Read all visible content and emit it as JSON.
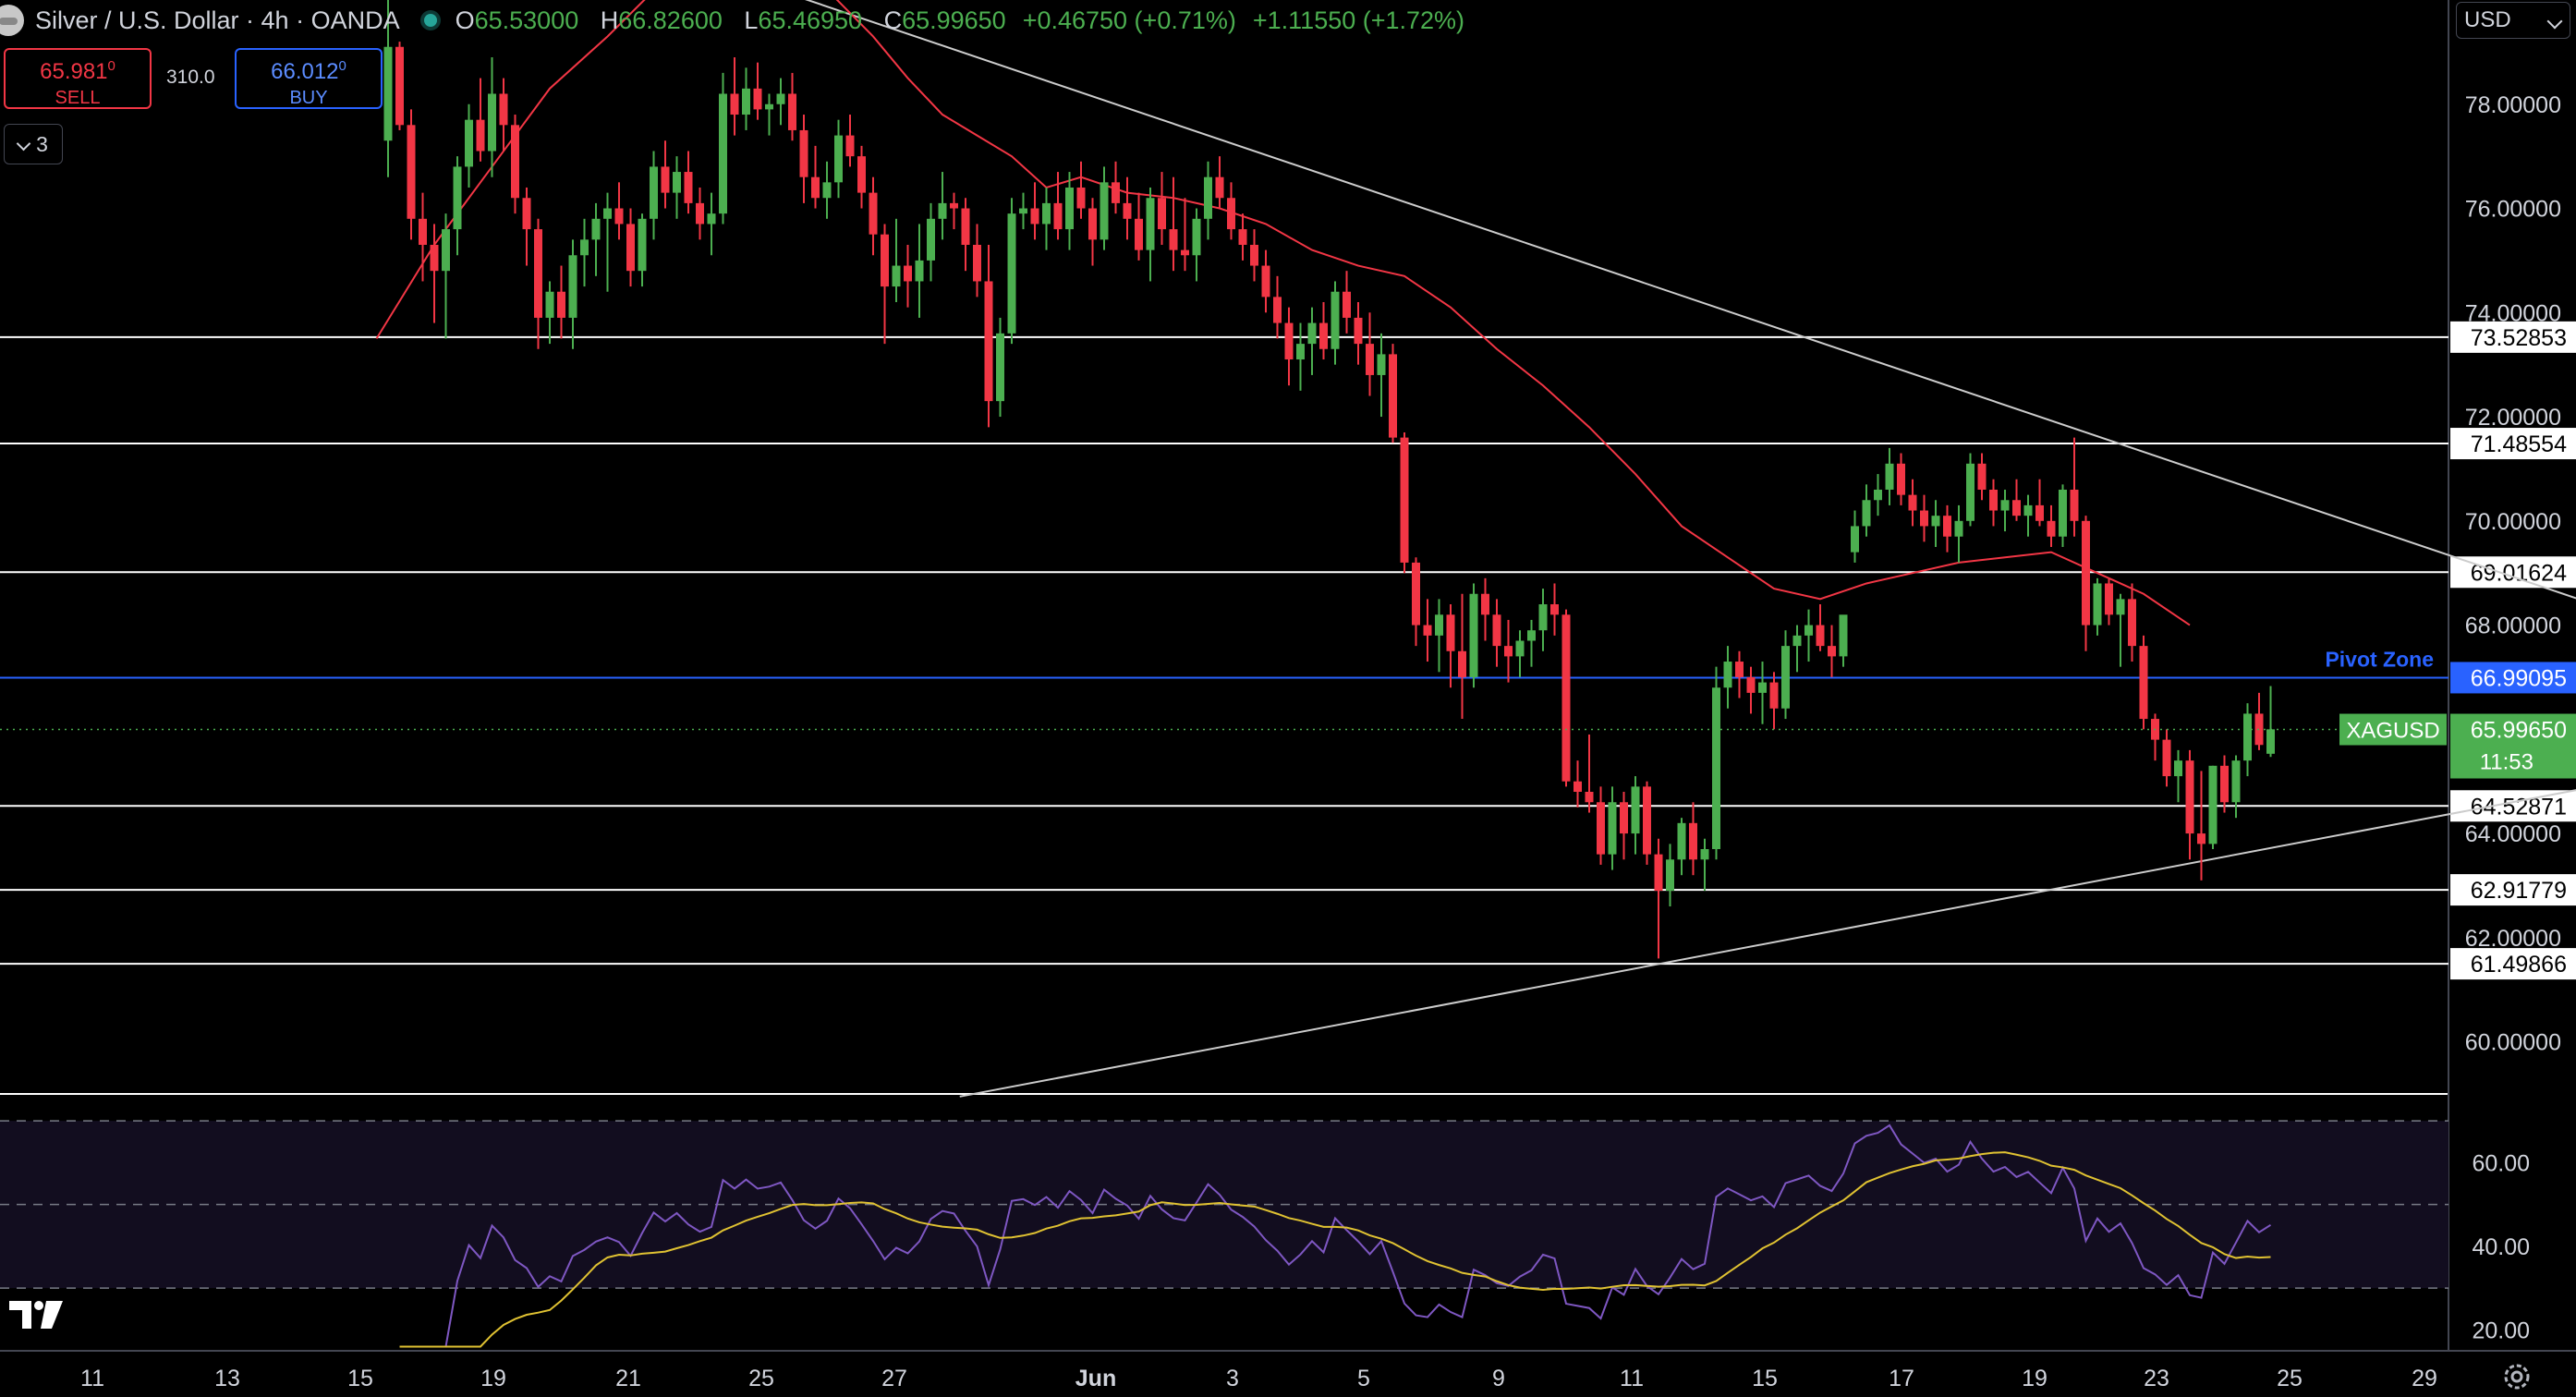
{
  "header": {
    "symbol_title": "Silver / U.S. Dollar · 4h · OANDA",
    "ohlc": [
      {
        "key": "O",
        "value": "65.53000"
      },
      {
        "key": "H",
        "value": "66.82600"
      },
      {
        "key": "L",
        "value": "65.46950"
      },
      {
        "key": "C",
        "value": "65.99650"
      }
    ],
    "change": "+0.46750 (+0.71%)",
    "change2": "+1.11550 (+1.72%)"
  },
  "trade": {
    "sell_price": "65.981",
    "sell_sup": "0",
    "sell_label": "SELL",
    "spread": "310.0",
    "buy_price": "66.012",
    "buy_sup": "0",
    "buy_label": "BUY"
  },
  "indicator_toggle": "3",
  "currency": "USD",
  "chart_data": {
    "type": "candlestick",
    "symbol": "XAGUSD",
    "interval": "4h",
    "y_range": [
      59.0,
      80.0
    ],
    "y_ticks": [
      "78.00000",
      "76.00000",
      "74.00000",
      "72.00000",
      "70.00000",
      "68.00000",
      "64.00000",
      "62.00000",
      "60.00000"
    ],
    "x_ticks": [
      "11",
      "13",
      "15",
      "19",
      "21",
      "25",
      "27",
      "Jun",
      "3",
      "5",
      "9",
      "11",
      "15",
      "17",
      "19",
      "23",
      "25",
      "29"
    ],
    "last_price": {
      "label": "XAGUSD",
      "value": "65.99650",
      "countdown": "11:53",
      "color": "#4caf50"
    },
    "levels": [
      {
        "value": 73.52853,
        "label": "73.52853",
        "color": "#ffffff"
      },
      {
        "value": 71.48554,
        "label": "71.48554",
        "color": "#ffffff"
      },
      {
        "value": 69.01624,
        "label": "69.01624",
        "color": "#ffffff"
      },
      {
        "value": 66.99095,
        "label": "66.99095",
        "color": "#2962ff",
        "name": "Pivot Zone"
      },
      {
        "value": 64.52871,
        "label": "64.52871",
        "color": "#ffffff"
      },
      {
        "value": 62.91779,
        "label": "62.91779",
        "color": "#ffffff"
      },
      {
        "value": 61.49866,
        "label": "61.49866",
        "color": "#ffffff"
      }
    ],
    "trendlines": [
      {
        "from": [
          -1,
          82.8
        ],
        "to": [
          197,
          67.95
        ],
        "color": "#cccccc"
      },
      {
        "from": [
          49.5,
          58.95
        ],
        "to": [
          197,
          65.15
        ],
        "color": "#cccccc"
      }
    ],
    "ma_color": "#f23645",
    "ma": [
      [
        -1,
        73.5
      ],
      [
        4,
        75.3
      ],
      [
        9,
        76.8
      ],
      [
        14,
        78.3
      ],
      [
        19,
        79.3
      ],
      [
        24,
        80.4
      ],
      [
        29,
        81.0
      ],
      [
        34,
        80.9
      ],
      [
        38,
        80.2
      ],
      [
        42,
        79.3
      ],
      [
        45,
        78.5
      ],
      [
        48,
        77.8
      ],
      [
        51,
        77.4
      ],
      [
        54,
        77.0
      ],
      [
        57,
        76.4
      ],
      [
        60,
        76.6
      ],
      [
        64,
        76.3
      ],
      [
        68,
        76.2
      ],
      [
        72,
        76.0
      ],
      [
        76,
        75.7
      ],
      [
        80,
        75.2
      ],
      [
        84,
        74.9
      ],
      [
        88,
        74.7
      ],
      [
        92,
        74.1
      ],
      [
        96,
        73.3
      ],
      [
        100,
        72.6
      ],
      [
        104,
        71.8
      ],
      [
        108,
        70.9
      ],
      [
        112,
        69.9
      ],
      [
        116,
        69.3
      ],
      [
        120,
        68.7
      ],
      [
        124,
        68.5
      ],
      [
        128,
        68.8
      ],
      [
        132,
        69.0
      ],
      [
        136,
        69.2
      ],
      [
        140,
        69.3
      ],
      [
        144,
        69.4
      ],
      [
        148,
        69.0
      ],
      [
        152,
        68.6
      ],
      [
        156,
        68.0
      ]
    ],
    "candles": [
      [
        77.3,
        80.0,
        76.6,
        79.1
      ],
      [
        79.1,
        79.2,
        77.5,
        77.6
      ],
      [
        77.6,
        77.9,
        75.4,
        75.8
      ],
      [
        75.8,
        76.3,
        74.6,
        75.3
      ],
      [
        75.3,
        75.7,
        73.8,
        74.8
      ],
      [
        74.8,
        75.9,
        73.5,
        75.6
      ],
      [
        75.6,
        77.0,
        75.1,
        76.8
      ],
      [
        76.8,
        78.0,
        76.4,
        77.7
      ],
      [
        77.7,
        78.5,
        76.9,
        77.1
      ],
      [
        77.1,
        78.9,
        76.6,
        78.2
      ],
      [
        78.2,
        78.5,
        77.1,
        77.6
      ],
      [
        77.6,
        77.8,
        75.9,
        76.2
      ],
      [
        76.2,
        76.4,
        74.9,
        75.6
      ],
      [
        75.6,
        75.8,
        73.3,
        73.9
      ],
      [
        73.9,
        74.6,
        73.4,
        74.4
      ],
      [
        74.4,
        74.9,
        73.5,
        73.9
      ],
      [
        73.9,
        75.4,
        73.3,
        75.1
      ],
      [
        75.1,
        75.8,
        74.5,
        75.4
      ],
      [
        75.4,
        76.1,
        74.7,
        75.8
      ],
      [
        75.8,
        76.3,
        74.4,
        76.0
      ],
      [
        76.0,
        76.5,
        75.4,
        75.7
      ],
      [
        75.7,
        76.0,
        74.5,
        74.8
      ],
      [
        74.8,
        75.9,
        74.5,
        75.8
      ],
      [
        75.8,
        77.1,
        75.4,
        76.8
      ],
      [
        76.8,
        77.3,
        76.0,
        76.3
      ],
      [
        76.3,
        77.0,
        75.8,
        76.7
      ],
      [
        76.7,
        77.1,
        75.9,
        76.1
      ],
      [
        76.1,
        76.4,
        75.4,
        75.7
      ],
      [
        75.7,
        76.3,
        75.1,
        75.9
      ],
      [
        75.9,
        78.6,
        75.7,
        78.2
      ],
      [
        78.2,
        78.9,
        77.4,
        77.8
      ],
      [
        77.8,
        78.7,
        77.5,
        78.3
      ],
      [
        78.3,
        78.8,
        77.7,
        77.9
      ],
      [
        77.9,
        78.2,
        77.4,
        78.0
      ],
      [
        78.0,
        78.5,
        77.6,
        78.2
      ],
      [
        78.2,
        78.6,
        77.3,
        77.5
      ],
      [
        77.5,
        77.8,
        76.1,
        76.6
      ],
      [
        76.6,
        77.2,
        76.0,
        76.2
      ],
      [
        76.2,
        76.9,
        75.8,
        76.5
      ],
      [
        76.5,
        77.7,
        76.2,
        77.4
      ],
      [
        77.4,
        77.8,
        76.8,
        77.0
      ],
      [
        77.0,
        77.2,
        76.0,
        76.3
      ],
      [
        76.3,
        76.6,
        75.1,
        75.5
      ],
      [
        75.5,
        75.7,
        73.4,
        74.5
      ],
      [
        74.5,
        75.8,
        74.2,
        74.9
      ],
      [
        74.9,
        75.3,
        74.1,
        74.6
      ],
      [
        74.6,
        75.7,
        73.9,
        75.0
      ],
      [
        75.0,
        76.1,
        74.6,
        75.8
      ],
      [
        75.8,
        76.7,
        75.4,
        76.1
      ],
      [
        76.1,
        76.3,
        75.6,
        76.0
      ],
      [
        76.0,
        76.2,
        74.8,
        75.3
      ],
      [
        75.3,
        75.7,
        74.3,
        74.6
      ],
      [
        74.6,
        75.3,
        71.8,
        72.3
      ],
      [
        72.3,
        73.9,
        72.0,
        73.6
      ],
      [
        73.6,
        76.2,
        73.4,
        75.9
      ],
      [
        75.9,
        76.3,
        75.6,
        76.0
      ],
      [
        76.0,
        76.5,
        75.4,
        75.7
      ],
      [
        75.7,
        76.4,
        75.2,
        76.1
      ],
      [
        76.1,
        76.7,
        75.4,
        75.6
      ],
      [
        75.6,
        76.7,
        75.2,
        76.4
      ],
      [
        76.4,
        76.9,
        75.8,
        76.0
      ],
      [
        76.0,
        76.2,
        74.9,
        75.4
      ],
      [
        75.4,
        76.8,
        75.2,
        76.5
      ],
      [
        76.5,
        76.9,
        75.9,
        76.1
      ],
      [
        76.1,
        76.6,
        75.4,
        75.8
      ],
      [
        75.8,
        76.3,
        75.0,
        75.2
      ],
      [
        75.2,
        76.4,
        74.6,
        76.2
      ],
      [
        76.2,
        76.7,
        75.3,
        75.6
      ],
      [
        75.6,
        76.6,
        74.8,
        75.2
      ],
      [
        75.2,
        76.2,
        74.8,
        75.1
      ],
      [
        75.1,
        76.0,
        74.6,
        75.8
      ],
      [
        75.8,
        76.9,
        75.4,
        76.6
      ],
      [
        76.6,
        77.0,
        76.0,
        76.2
      ],
      [
        76.2,
        76.5,
        75.4,
        75.6
      ],
      [
        75.6,
        75.9,
        75.0,
        75.3
      ],
      [
        75.3,
        75.6,
        74.6,
        74.9
      ],
      [
        74.9,
        75.2,
        74.0,
        74.3
      ],
      [
        74.3,
        74.7,
        73.5,
        73.8
      ],
      [
        73.8,
        74.1,
        72.6,
        73.1
      ],
      [
        73.1,
        73.8,
        72.5,
        73.4
      ],
      [
        73.4,
        74.1,
        72.8,
        73.8
      ],
      [
        73.8,
        74.2,
        73.1,
        73.3
      ],
      [
        73.3,
        74.6,
        73.0,
        74.4
      ],
      [
        74.4,
        74.8,
        73.6,
        73.9
      ],
      [
        73.9,
        74.2,
        73.0,
        73.4
      ],
      [
        73.4,
        74.0,
        72.4,
        72.8
      ],
      [
        72.8,
        73.6,
        72.0,
        73.2
      ],
      [
        73.2,
        73.4,
        71.5,
        71.6
      ],
      [
        71.6,
        71.7,
        69.0,
        69.2
      ],
      [
        69.2,
        69.3,
        67.6,
        68.0
      ],
      [
        68.0,
        68.5,
        67.3,
        67.8
      ],
      [
        67.8,
        68.5,
        67.1,
        68.2
      ],
      [
        68.2,
        68.4,
        66.8,
        67.5
      ],
      [
        67.5,
        68.6,
        66.2,
        67.0
      ],
      [
        67.0,
        68.8,
        66.8,
        68.6
      ],
      [
        68.6,
        68.9,
        67.7,
        68.2
      ],
      [
        68.2,
        68.5,
        67.2,
        67.6
      ],
      [
        67.6,
        68.1,
        66.9,
        67.4
      ],
      [
        67.4,
        67.9,
        67.0,
        67.7
      ],
      [
        67.7,
        68.1,
        67.2,
        67.9
      ],
      [
        67.9,
        68.7,
        67.5,
        68.4
      ],
      [
        68.4,
        68.8,
        67.8,
        68.2
      ],
      [
        68.2,
        68.3,
        64.9,
        65.0
      ],
      [
        65.0,
        65.4,
        64.5,
        64.8
      ],
      [
        64.8,
        65.9,
        64.4,
        64.6
      ],
      [
        64.6,
        64.9,
        63.4,
        63.6
      ],
      [
        63.6,
        64.9,
        63.3,
        64.6
      ],
      [
        64.6,
        64.8,
        63.5,
        64.0
      ],
      [
        64.0,
        65.1,
        63.6,
        64.9
      ],
      [
        64.9,
        65.0,
        63.4,
        63.6
      ],
      [
        63.6,
        63.9,
        61.6,
        62.9
      ],
      [
        62.9,
        63.8,
        62.6,
        63.5
      ],
      [
        63.5,
        64.3,
        63.2,
        64.2
      ],
      [
        64.2,
        64.6,
        63.2,
        63.5
      ],
      [
        63.5,
        63.9,
        62.9,
        63.7
      ],
      [
        63.7,
        67.2,
        63.5,
        66.8
      ],
      [
        66.8,
        67.6,
        66.4,
        67.3
      ],
      [
        67.3,
        67.5,
        66.6,
        67.0
      ],
      [
        67.0,
        67.2,
        66.3,
        66.7
      ],
      [
        66.7,
        67.3,
        66.1,
        66.9
      ],
      [
        66.9,
        67.1,
        66.0,
        66.4
      ],
      [
        66.4,
        67.9,
        66.2,
        67.6
      ],
      [
        67.6,
        68.0,
        67.1,
        67.8
      ],
      [
        67.8,
        68.3,
        67.3,
        68.0
      ],
      [
        68.0,
        68.4,
        67.5,
        67.6
      ],
      [
        67.6,
        68.0,
        67.0,
        67.4
      ],
      [
        67.4,
        68.1,
        67.2,
        68.2
      ],
      [
        69.4,
        70.2,
        69.2,
        69.9
      ],
      [
        69.9,
        70.7,
        69.7,
        70.4
      ],
      [
        70.4,
        70.9,
        70.1,
        70.6
      ],
      [
        70.6,
        71.4,
        70.3,
        71.1
      ],
      [
        71.1,
        71.3,
        70.3,
        70.5
      ],
      [
        70.5,
        70.8,
        69.9,
        70.2
      ],
      [
        70.2,
        70.5,
        69.6,
        69.9
      ],
      [
        69.9,
        70.4,
        69.5,
        70.1
      ],
      [
        70.1,
        70.3,
        69.4,
        69.7
      ],
      [
        69.7,
        70.3,
        69.2,
        70.0
      ],
      [
        70.0,
        71.3,
        69.9,
        71.1
      ],
      [
        71.1,
        71.3,
        70.4,
        70.6
      ],
      [
        70.6,
        70.8,
        69.9,
        70.2
      ],
      [
        70.2,
        70.6,
        69.8,
        70.4
      ],
      [
        70.4,
        70.8,
        70.0,
        70.1
      ],
      [
        70.1,
        70.5,
        69.7,
        70.3
      ],
      [
        70.3,
        70.8,
        69.9,
        70.0
      ],
      [
        70.0,
        70.3,
        69.5,
        69.7
      ],
      [
        69.7,
        70.7,
        69.5,
        70.6
      ],
      [
        70.6,
        71.6,
        69.7,
        70.0
      ],
      [
        70.0,
        70.1,
        67.5,
        68.0
      ],
      [
        68.0,
        68.9,
        67.8,
        68.8
      ],
      [
        68.8,
        68.9,
        68.0,
        68.2
      ],
      [
        68.2,
        68.6,
        67.2,
        68.5
      ],
      [
        68.5,
        68.8,
        67.3,
        67.6
      ],
      [
        67.6,
        67.8,
        66.0,
        66.2
      ],
      [
        66.2,
        66.3,
        65.4,
        65.8
      ],
      [
        65.8,
        66.0,
        64.9,
        65.1
      ],
      [
        65.1,
        65.6,
        64.6,
        65.4
      ],
      [
        65.4,
        65.6,
        63.5,
        64.0
      ],
      [
        64.0,
        65.2,
        63.1,
        63.8
      ],
      [
        63.8,
        65.3,
        63.7,
        65.3
      ],
      [
        65.3,
        65.5,
        64.4,
        64.6
      ],
      [
        64.6,
        65.5,
        64.3,
        65.4
      ],
      [
        65.4,
        66.5,
        65.1,
        66.3
      ],
      [
        66.3,
        66.7,
        65.6,
        65.7
      ],
      [
        65.53,
        66.83,
        65.47,
        66.0
      ]
    ],
    "rsi": {
      "y_range": [
        15,
        76
      ],
      "y_ticks": [
        "60.00",
        "40.00",
        "20.00"
      ],
      "bands": [
        70,
        50,
        30
      ],
      "line_color": "#7e57c2",
      "ma_color": "#e0c232"
    }
  }
}
